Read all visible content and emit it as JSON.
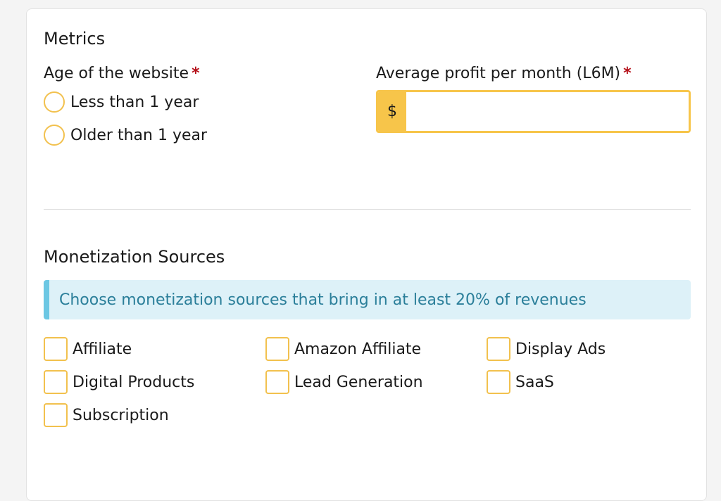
{
  "metrics": {
    "title": "Metrics",
    "age_label": "Age of the website",
    "age_required": "*",
    "age_options": [
      "Less than 1 year",
      "Older than 1 year"
    ],
    "profit_label": "Average profit per month (L6M)",
    "profit_required": "*",
    "currency_symbol": "$",
    "profit_value": ""
  },
  "monetization": {
    "title": "Monetization Sources",
    "info": "Choose monetization sources that bring in at least 20% of revenues",
    "options": [
      "Affiliate",
      "Amazon Affiliate",
      "Display Ads",
      "Digital Products",
      "Lead Generation",
      "SaaS",
      "Subscription"
    ]
  },
  "colors": {
    "accent": "#f7c54a",
    "required": "#b5121b",
    "info_bg": "#ddf1f8",
    "info_text": "#2b7f9a"
  }
}
